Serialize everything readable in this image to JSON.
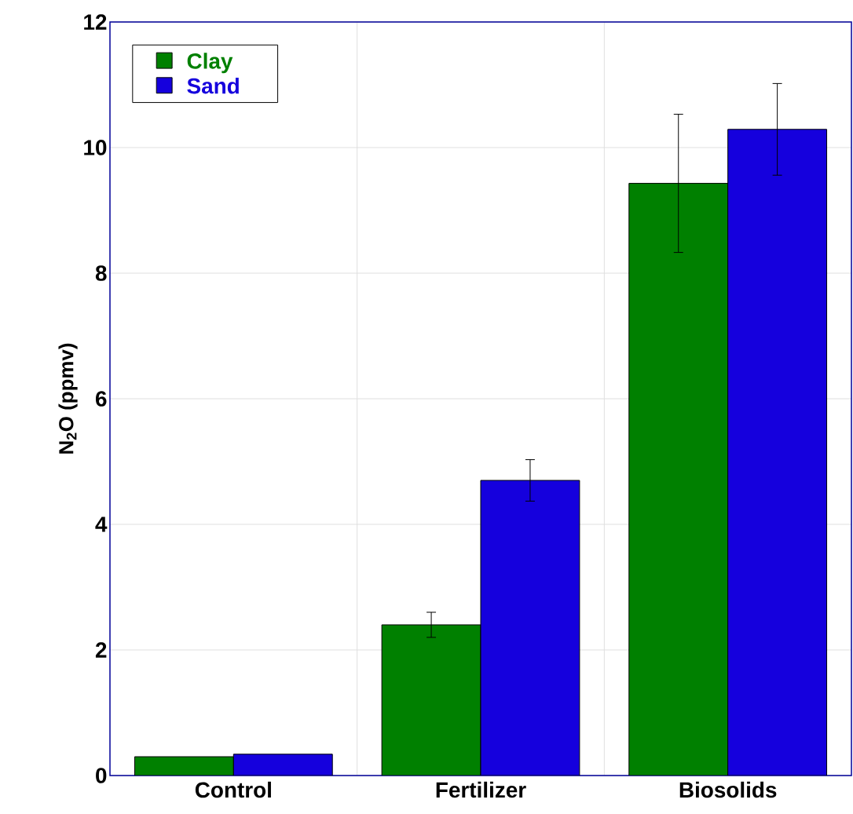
{
  "chart_data": {
    "type": "bar",
    "ylabel": "N$_{2}$O (ppmv)",
    "categories": [
      "Control",
      "Fertilizer",
      "Biosolids"
    ],
    "series": [
      {
        "name": "Clay",
        "color": "#008000",
        "values": [
          0.3,
          2.4,
          9.43
        ],
        "errors": [
          null,
          0.2,
          1.1
        ]
      },
      {
        "name": "Sand",
        "color": "#1500dd",
        "values": [
          0.34,
          4.7,
          10.29
        ],
        "errors": [
          null,
          0.33,
          0.73
        ]
      }
    ],
    "ylim": [
      0,
      12
    ],
    "yticks": [
      0,
      2,
      4,
      6,
      8,
      10,
      12
    ],
    "grid": true,
    "legend": "top left"
  }
}
